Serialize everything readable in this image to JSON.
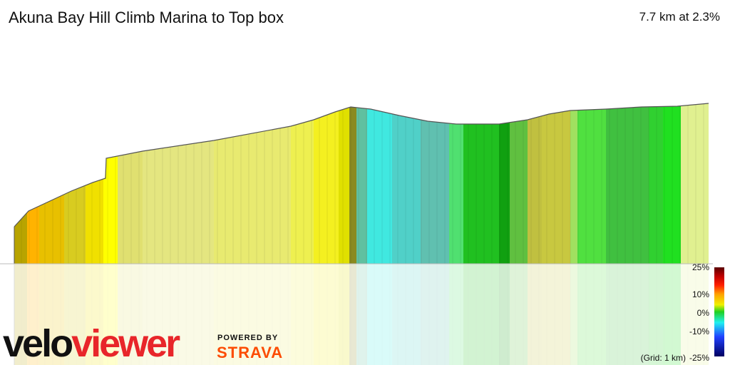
{
  "header": {
    "title": "Akuna Bay Hill Climb Marina to Top box",
    "summary": "7.7 km at 2.3%"
  },
  "legend": {
    "labels": [
      "25%",
      "10%",
      "0%",
      "-10%",
      "-25%"
    ],
    "grid_note": "(Grid: 1 km)"
  },
  "logo": {
    "part1": "velo",
    "part2": "viewer",
    "powered_by": "POWERED BY",
    "strava": "STRAVA"
  }
}
